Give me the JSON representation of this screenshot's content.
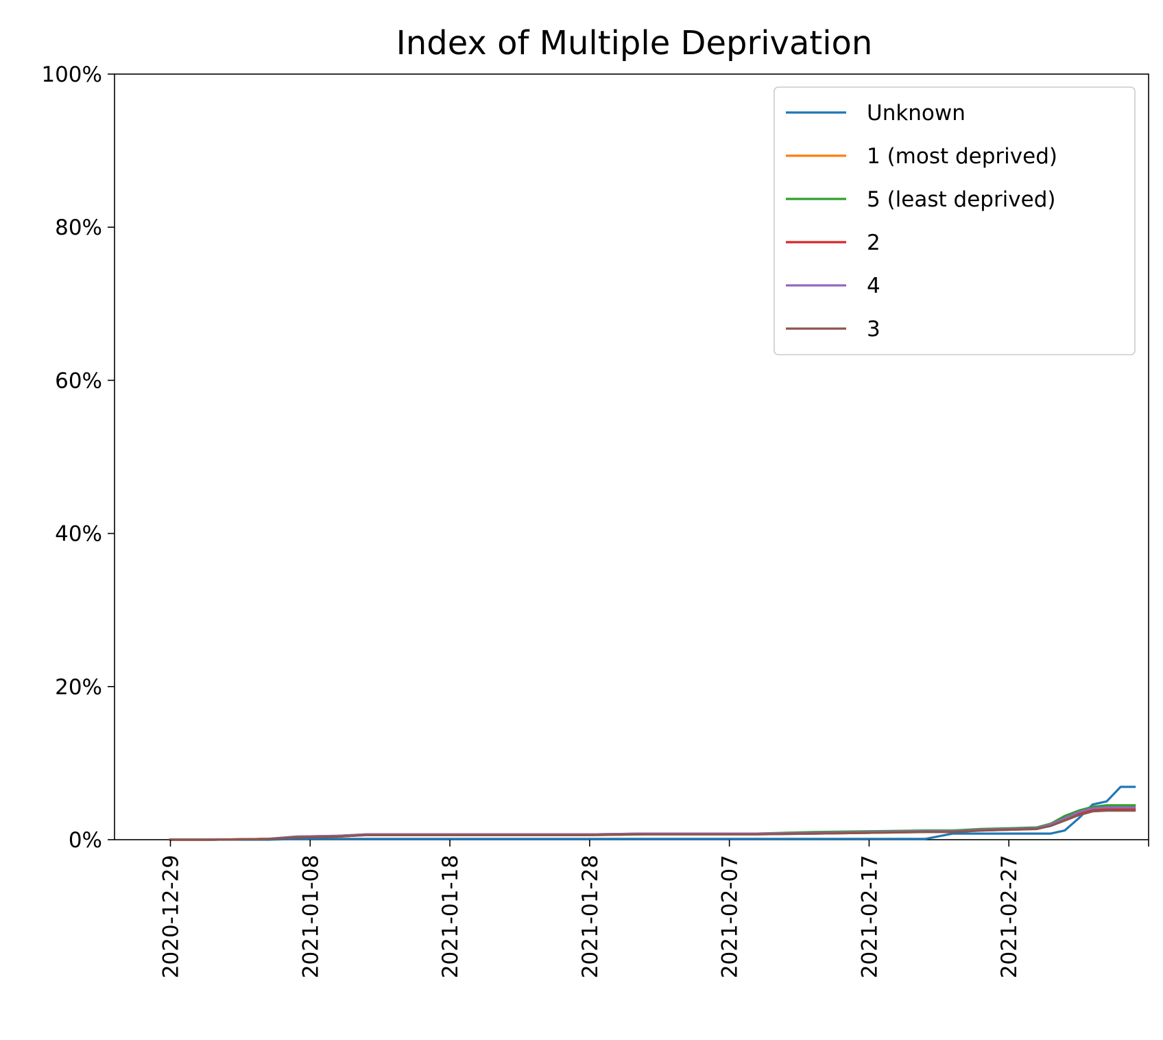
{
  "chart_data": {
    "type": "line",
    "title": "Index of Multiple Deprivation",
    "xlabel": "",
    "ylabel": "",
    "y_format": "percent",
    "ylim": [
      0,
      100
    ],
    "xlim": [
      "2020-12-25",
      "2021-03-09"
    ],
    "y_ticks": [
      0,
      20,
      40,
      60,
      80,
      100
    ],
    "y_tick_labels": [
      "0%",
      "20%",
      "40%",
      "60%",
      "80%",
      "100%"
    ],
    "x_ticks": [
      "2020-12-29",
      "2021-01-08",
      "2021-01-18",
      "2021-01-28",
      "2021-02-07",
      "2021-02-17",
      "2021-02-27",
      "2021-03-09"
    ],
    "x_tick_labels": [
      "2020-12-29",
      "2021-01-08",
      "2021-01-18",
      "2021-01-28",
      "2021-02-07",
      "2021-02-17",
      "2021-02-27",
      ""
    ],
    "grid": false,
    "legend_position": "top-right",
    "x": [
      "2020-12-29",
      "2021-01-01",
      "2021-01-05",
      "2021-01-07",
      "2021-01-10",
      "2021-01-12",
      "2021-01-16",
      "2021-01-20",
      "2021-01-24",
      "2021-01-28",
      "2021-02-01",
      "2021-02-05",
      "2021-02-09",
      "2021-02-13",
      "2021-02-17",
      "2021-02-21",
      "2021-02-23",
      "2021-02-25",
      "2021-02-27",
      "2021-03-01",
      "2021-03-02",
      "2021-03-03",
      "2021-03-04",
      "2021-03-05",
      "2021-03-06",
      "2021-03-07",
      "2021-03-08"
    ],
    "series": [
      {
        "name": "Unknown",
        "color": "#1f77b4",
        "values": [
          0,
          0,
          0,
          0.1,
          0.1,
          0.1,
          0.1,
          0.1,
          0.1,
          0.1,
          0.1,
          0.1,
          0.1,
          0.1,
          0.1,
          0.1,
          0.8,
          0.8,
          0.8,
          0.8,
          0.8,
          1.2,
          2.8,
          4.6,
          5.0,
          6.9,
          6.9
        ]
      },
      {
        "name": "1 (most deprived)",
        "color": "#ff7f0e",
        "values": [
          0,
          0,
          0.1,
          0.4,
          0.5,
          0.7,
          0.7,
          0.7,
          0.7,
          0.7,
          0.8,
          0.8,
          0.8,
          0.9,
          1.0,
          1.1,
          1.1,
          1.3,
          1.4,
          1.5,
          2.0,
          2.8,
          3.6,
          4.2,
          4.4,
          4.4,
          4.4
        ]
      },
      {
        "name": "5 (least deprived)",
        "color": "#2ca02c",
        "values": [
          0,
          0,
          0.1,
          0.4,
          0.5,
          0.7,
          0.7,
          0.7,
          0.7,
          0.7,
          0.8,
          0.8,
          0.8,
          1.0,
          1.1,
          1.2,
          1.2,
          1.4,
          1.5,
          1.6,
          2.1,
          3.1,
          3.8,
          4.3,
          4.5,
          4.5,
          4.5
        ]
      },
      {
        "name": "2",
        "color": "#d62728",
        "values": [
          0,
          0,
          0.1,
          0.3,
          0.4,
          0.6,
          0.6,
          0.6,
          0.6,
          0.6,
          0.7,
          0.7,
          0.7,
          0.8,
          0.9,
          1.0,
          1.0,
          1.2,
          1.3,
          1.4,
          1.9,
          2.6,
          3.4,
          3.9,
          4.0,
          4.0,
          4.0
        ]
      },
      {
        "name": "4",
        "color": "#9467bd",
        "values": [
          0,
          0,
          0.1,
          0.4,
          0.5,
          0.7,
          0.7,
          0.7,
          0.7,
          0.7,
          0.8,
          0.8,
          0.8,
          0.9,
          1.0,
          1.1,
          1.1,
          1.3,
          1.4,
          1.5,
          2.0,
          2.8,
          3.6,
          4.1,
          4.2,
          4.2,
          4.2
        ]
      },
      {
        "name": "3",
        "color": "#8c564b",
        "values": [
          0,
          0,
          0.1,
          0.3,
          0.4,
          0.6,
          0.6,
          0.6,
          0.6,
          0.6,
          0.7,
          0.7,
          0.7,
          0.8,
          0.9,
          1.0,
          1.0,
          1.2,
          1.3,
          1.4,
          1.8,
          2.5,
          3.2,
          3.7,
          3.8,
          3.8,
          3.8
        ]
      }
    ]
  }
}
